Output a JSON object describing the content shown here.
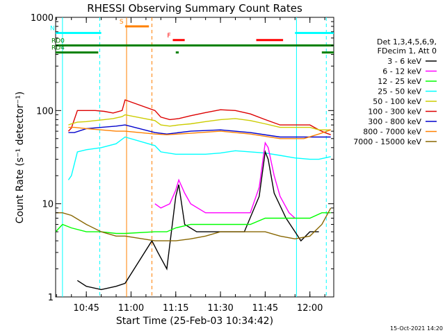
{
  "chart_data": {
    "type": "line",
    "title": "RHESSI Observing Summary Count Rates",
    "xlabel": "Start Time (25-Feb-03 10:34:42)",
    "ylabel": "Count Rate (s⁻¹ detector⁻¹)",
    "timestamp": "15-Oct-2021 14:20",
    "y_scale": "log",
    "ylim": [
      1,
      1000
    ],
    "xlim": [
      "10:34:42",
      "12:08:00"
    ],
    "y_ticks": [
      "1",
      "10",
      "100",
      "1000"
    ],
    "x_ticks": [
      "10:45",
      "11:00",
      "11:15",
      "11:30",
      "11:45",
      "12:00"
    ],
    "legend": {
      "placement": "right",
      "header": [
        "Det 1,3,4,5,6,9,",
        "FDecim 1, Att 0"
      ],
      "entries": [
        {
          "label": "3 - 6 keV",
          "color": "#000000"
        },
        {
          "label": "6 - 12 keV",
          "color": "#ff00ff"
        },
        {
          "label": "12 - 25 keV",
          "color": "#00ff00"
        },
        {
          "label": "25 - 50 keV",
          "color": "#00ffff"
        },
        {
          "label": "50 - 100 keV",
          "color": "#cccc00"
        },
        {
          "label": "100 - 300 keV",
          "color": "#dd0000"
        },
        {
          "label": "300 - 800 keV",
          "color": "#0000cc"
        },
        {
          "label": "800 - 7000 keV",
          "color": "#ff8000"
        },
        {
          "label": "7000 - 15000 keV",
          "color": "#886600"
        }
      ]
    },
    "flag_bars": [
      {
        "label": "N",
        "color": "#00ffff",
        "y": 680,
        "segments": [
          [
            "10:34:42",
            "10:50"
          ],
          [
            "11:55",
            "12:08"
          ]
        ]
      },
      {
        "label": "S",
        "color": "#ff8000",
        "y": 800,
        "segments": [
          [
            "10:58",
            "11:06"
          ]
        ]
      },
      {
        "label": "F",
        "color": "#ff0000",
        "y": 570,
        "segments": [
          [
            "11:14",
            "11:18"
          ],
          [
            "11:42",
            "11:51"
          ]
        ]
      },
      {
        "label": "RD0",
        "color": "#008000",
        "y": 500,
        "segments": [
          [
            "10:34:42",
            "12:08"
          ]
        ]
      },
      {
        "label": "RD4",
        "color": "#008000",
        "y": 420,
        "segments": [
          [
            "10:34:42",
            "10:49"
          ],
          [
            "11:15",
            "11:16"
          ],
          [
            "12:04",
            "12:08"
          ]
        ]
      }
    ],
    "vertical_markers": [
      {
        "time": "10:37:00",
        "color": "#00ffff",
        "style": "solid"
      },
      {
        "time": "10:49:30",
        "color": "#00ffff",
        "style": "dashed"
      },
      {
        "time": "10:58:30",
        "color": "#ff8000",
        "style": "solid"
      },
      {
        "time": "11:07:00",
        "color": "#ff8000",
        "style": "dashed"
      },
      {
        "time": "11:55:30",
        "color": "#00ffff",
        "style": "solid"
      },
      {
        "time": "12:05:30",
        "color": "#00ffff",
        "style": "dashed"
      }
    ],
    "data_gaps": [
      [
        "10:58:30",
        "11:07:30"
      ]
    ],
    "series": [
      {
        "name": "100 - 300 keV",
        "color": "#dd0000",
        "x": [
          "10:39",
          "10:40",
          "10:42",
          "10:45",
          "10:48",
          "10:51",
          "10:54",
          "10:57",
          "10:58",
          "11:08",
          "11:10",
          "11:13",
          "11:16",
          "11:20",
          "11:25",
          "11:30",
          "11:35",
          "11:40",
          "11:45",
          "11:50",
          "11:55",
          "12:00",
          "12:03",
          "12:05",
          "12:07"
        ],
        "y": [
          60,
          65,
          100,
          100,
          100,
          98,
          94,
          100,
          130,
          100,
          85,
          80,
          82,
          88,
          95,
          102,
          100,
          92,
          80,
          70,
          70,
          70,
          62,
          58,
          55
        ]
      },
      {
        "name": "50 - 100 keV",
        "color": "#cccc00",
        "x": [
          "10:39",
          "10:40",
          "10:42",
          "10:45",
          "10:48",
          "10:51",
          "10:54",
          "10:57",
          "10:58",
          "11:08",
          "11:10",
          "11:13",
          "11:16",
          "11:20",
          "11:25",
          "11:30",
          "11:35",
          "11:40",
          "11:45",
          "11:50",
          "11:55",
          "12:00",
          "12:03",
          "12:05",
          "12:07"
        ],
        "y": [
          70,
          72,
          75,
          76,
          78,
          80,
          82,
          86,
          90,
          78,
          70,
          68,
          70,
          72,
          76,
          80,
          82,
          78,
          72,
          66,
          66,
          66,
          62,
          62,
          62
        ]
      },
      {
        "name": "300 - 800 keV",
        "color": "#0000cc",
        "x": [
          "10:39",
          "10:41",
          "10:45",
          "10:50",
          "10:55",
          "10:58",
          "11:08",
          "11:12",
          "11:20",
          "11:30",
          "11:40",
          "11:50",
          "11:58",
          "12:03",
          "12:07"
        ],
        "y": [
          58,
          58,
          64,
          66,
          68,
          70,
          58,
          56,
          60,
          62,
          58,
          52,
          52,
          52,
          52
        ]
      },
      {
        "name": "800 - 7000 keV",
        "color": "#ff8000",
        "x": [
          "10:39",
          "10:41",
          "10:45",
          "10:50",
          "10:55",
          "10:58",
          "11:08",
          "11:12",
          "11:20",
          "11:30",
          "11:40",
          "11:50",
          "11:58",
          "12:03",
          "12:07"
        ],
        "y": [
          66,
          66,
          64,
          62,
          60,
          60,
          56,
          55,
          57,
          60,
          56,
          50,
          50,
          56,
          62
        ]
      },
      {
        "name": "25 - 50 keV",
        "color": "#00ffff",
        "x": [
          "10:39",
          "10:40",
          "10:42",
          "10:45",
          "10:50",
          "10:55",
          "10:58",
          "11:08",
          "11:10",
          "11:15",
          "11:20",
          "11:25",
          "11:30",
          "11:35",
          "11:40",
          "11:45",
          "11:50",
          "11:55",
          "12:00",
          "12:03",
          "12:05",
          "12:07"
        ],
        "y": [
          18,
          20,
          36,
          38,
          40,
          44,
          52,
          42,
          36,
          34,
          34,
          34,
          35,
          37,
          36,
          35,
          33,
          31,
          30,
          30,
          31,
          32
        ]
      },
      {
        "name": "6 - 12 keV",
        "color": "#ff00ff",
        "x": [
          "11:08",
          "11:10",
          "11:13",
          "11:15",
          "11:16",
          "11:18",
          "11:20",
          "11:25",
          "11:30",
          "11:35",
          "11:40",
          "11:43",
          "11:45",
          "11:46",
          "11:48",
          "11:50",
          "11:53",
          "11:55"
        ],
        "y": [
          10,
          9,
          10,
          14,
          18,
          13,
          10,
          8,
          8,
          8,
          8,
          15,
          45,
          40,
          20,
          12,
          8,
          7
        ]
      },
      {
        "name": "3 - 6 keV",
        "color": "#000000",
        "x": [
          "10:42",
          "10:45",
          "10:50",
          "10:55",
          "10:58",
          "11:07",
          "11:09",
          "11:12",
          "11:15",
          "11:16",
          "11:18",
          "11:22",
          "11:30",
          "11:38",
          "11:43",
          "11:45",
          "11:46",
          "11:48",
          "11:52",
          "11:55",
          "11:57",
          "12:00",
          "12:03"
        ],
        "y": [
          1.5,
          1.3,
          1.2,
          1.3,
          1.4,
          4,
          3,
          2,
          12,
          16,
          6,
          5,
          5,
          5,
          12,
          36,
          30,
          13,
          7,
          5,
          4,
          5,
          5
        ]
      },
      {
        "name": "12 - 25 keV",
        "color": "#00ff00",
        "x": [
          "10:34:42",
          "10:37",
          "10:40",
          "10:45",
          "10:50",
          "10:55",
          "10:58",
          "11:08",
          "11:12",
          "11:15",
          "11:20",
          "11:25",
          "11:30",
          "11:35",
          "11:40",
          "11:45",
          "11:50",
          "11:55",
          "12:00",
          "12:04",
          "12:07"
        ],
        "y": [
          5,
          6,
          5.5,
          5,
          5,
          4.8,
          4.8,
          5,
          5,
          5.5,
          6,
          6,
          6,
          6,
          6,
          7,
          7,
          7,
          7,
          8,
          8
        ]
      },
      {
        "name": "7000 - 15000 keV",
        "color": "#886600",
        "x": [
          "10:34:42",
          "10:37",
          "10:40",
          "10:45",
          "10:50",
          "10:55",
          "10:58",
          "11:08",
          "11:12",
          "11:15",
          "11:20",
          "11:25",
          "11:30",
          "11:35",
          "11:40",
          "11:45",
          "11:50",
          "11:55",
          "12:00",
          "12:04",
          "12:07"
        ],
        "y": [
          8,
          8,
          7.5,
          6,
          5,
          4.5,
          4.5,
          4,
          4,
          4,
          4.2,
          4.5,
          5,
          5,
          5,
          5,
          4.5,
          4.2,
          4.5,
          6,
          9
        ]
      }
    ]
  }
}
